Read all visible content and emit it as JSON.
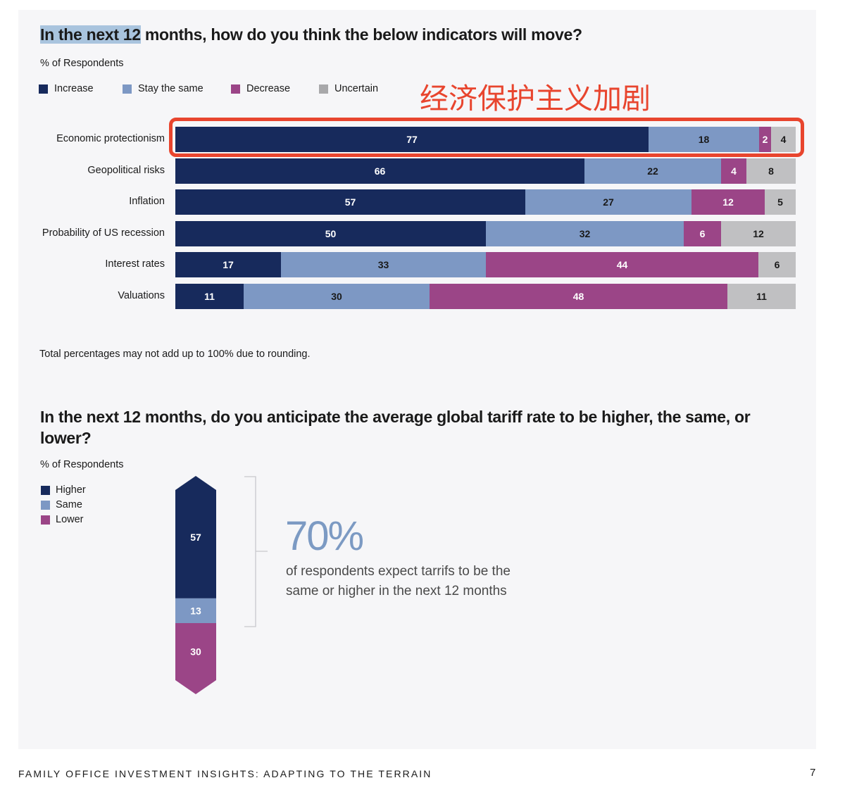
{
  "chart_data": [
    {
      "type": "bar",
      "orientation": "horizontal-stacked",
      "title": "In the next 12 months, how do you think the below indicators will move?",
      "title_highlight": "In the next 12",
      "title_rest": " months, how do you think the below indicators will move?",
      "ylabel": "% of Respondents",
      "categories": [
        "Economic protectionism",
        "Geopolitical risks",
        "Inflation",
        "Probability of US recession",
        "Interest rates",
        "Valuations"
      ],
      "series": [
        {
          "name": "Increase",
          "color": "#172a5c",
          "values": [
            77,
            66,
            57,
            50,
            17,
            11
          ]
        },
        {
          "name": "Stay the same",
          "color": "#7d98c4",
          "values": [
            18,
            22,
            27,
            32,
            33,
            30
          ]
        },
        {
          "name": "Decrease",
          "color": "#9b4587",
          "values": [
            2,
            4,
            12,
            6,
            44,
            48
          ]
        },
        {
          "name": "Uncertain",
          "color": "#c0c0c2",
          "values": [
            4,
            8,
            5,
            12,
            6,
            11
          ]
        }
      ],
      "note": "Total percentages may not add up to 100% due to rounding.",
      "annotation": "经济保护主义加剧"
    },
    {
      "type": "bar",
      "orientation": "vertical-stacked",
      "title": "In the next 12 months, do you anticipate the average global tariff rate to be higher, the same, or lower?",
      "ylabel": "% of Respondents",
      "series": [
        {
          "name": "Higher",
          "color": "#172a5c",
          "value": 57
        },
        {
          "name": "Same",
          "color": "#7d98c4",
          "value": 13
        },
        {
          "name": "Lower",
          "color": "#9b4587",
          "value": 30
        }
      ],
      "callout_value": "70%",
      "callout_text": "of respondents expect tarrifs to be the same or higher in the next 12 months"
    }
  ],
  "footer": {
    "publication": "FAMILY OFFICE INVESTMENT INSIGHTS: ADAPTING TO THE TERRAIN",
    "page_number": "7"
  }
}
